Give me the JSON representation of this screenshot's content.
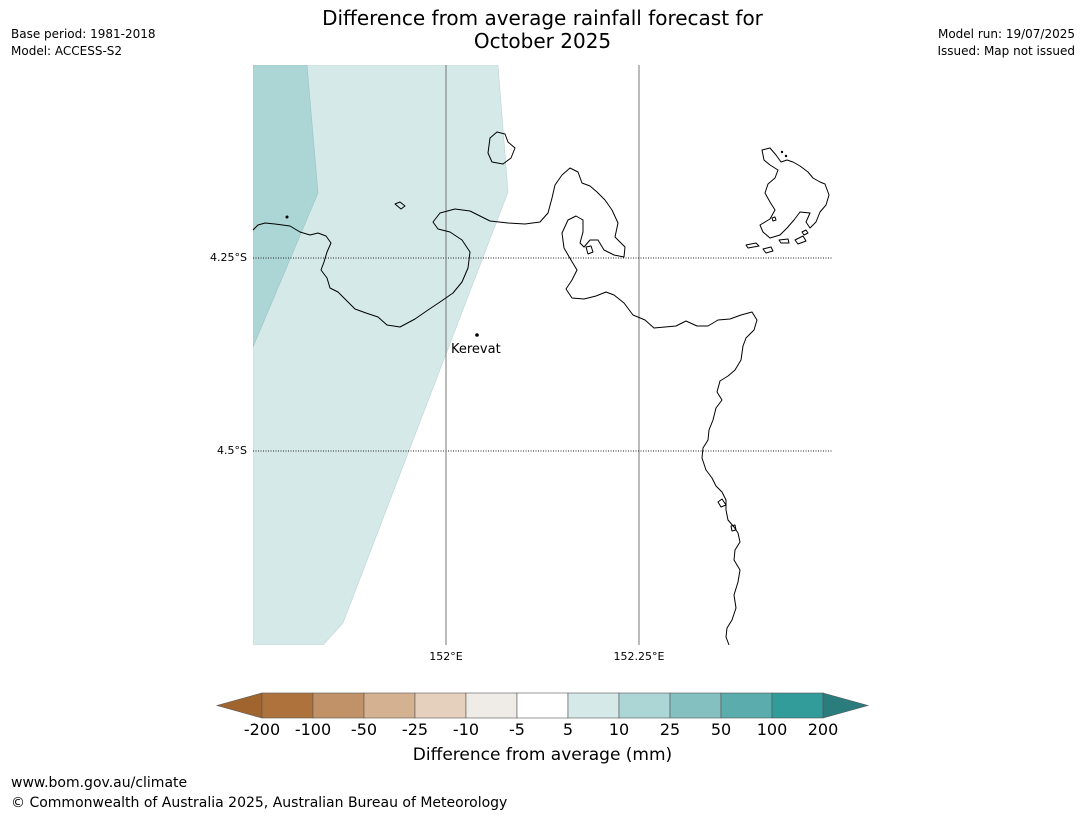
{
  "title": {
    "line1": "Difference from average rainfall forecast for",
    "line2": "October 2025"
  },
  "meta": {
    "base_period": "Base period: 1981-2018",
    "model": "Model: ACCESS-S2",
    "model_run": "Model run: 19/07/2025",
    "issued": "Issued: Map not issued"
  },
  "map": {
    "lat_labels": [
      "4.25°S",
      "4.5°S"
    ],
    "lon_labels": [
      "152°E",
      "152.25°E"
    ],
    "place": {
      "name": "Kerevat"
    },
    "colors": {
      "band_5_10": "#d4e9e8",
      "band_10_25": "#acd5d5",
      "coast": "#000000"
    }
  },
  "colorbar": {
    "ticks": [
      "-200",
      "-100",
      "-50",
      "-25",
      "-10",
      "-5",
      "5",
      "10",
      "25",
      "50",
      "100",
      "200"
    ],
    "colors": [
      "#a0652f",
      "#ae733c",
      "#c19268",
      "#d4b191",
      "#e5d0bd",
      "#efebe7",
      "#ffffff",
      "#d4e9e8",
      "#acd5d5",
      "#84c0bf",
      "#5aacad",
      "#329c9b",
      "#2b7c7c"
    ],
    "label": "Difference from average (mm)"
  },
  "footer": {
    "url": "www.bom.gov.au/climate",
    "copyright": "© Commonwealth of Australia 2025, Australian Bureau of Meteorology"
  }
}
